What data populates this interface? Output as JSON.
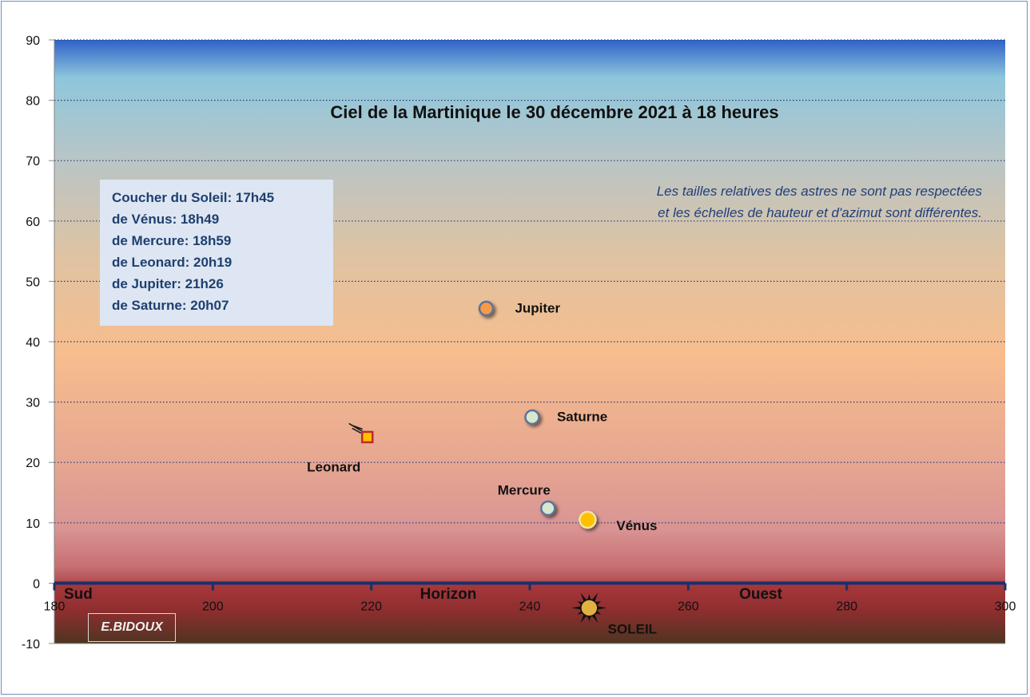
{
  "chart_data": {
    "type": "scatter",
    "title": "Ciel de la Martinique le 30 décembre 2021 à 18 heures",
    "note": [
      "Les tailles relatives des astres ne sont pas respectées",
      "et les échelles de hauteur et d'azimut sont différentes."
    ],
    "xlim": [
      180,
      300
    ],
    "ylim": [
      -10,
      90
    ],
    "x_ticks": [
      180,
      200,
      220,
      240,
      260,
      280,
      300
    ],
    "y_ticks": [
      -10,
      0,
      10,
      20,
      30,
      40,
      50,
      60,
      70,
      80,
      90
    ],
    "grid": "horizontal dotted",
    "horizon_labels": {
      "south": "Sud",
      "center": "Horizon",
      "west": "Ouest"
    },
    "points": [
      {
        "label": "Jupiter",
        "x": 234.5,
        "y": 45.5,
        "marker": "circle",
        "color": "#f59a4a"
      },
      {
        "label": "Saturne",
        "x": 240.3,
        "y": 27.5,
        "marker": "circle",
        "color": "#d6e8cf"
      },
      {
        "label": "Leonard",
        "x": 219.5,
        "y": 24.2,
        "marker": "comet",
        "color": "#ffc000"
      },
      {
        "label": "Mercure",
        "x": 242.3,
        "y": 12.4,
        "marker": "circle",
        "color": "#d6e8cf"
      },
      {
        "label": "Vénus",
        "x": 247.3,
        "y": 10.5,
        "marker": "circle",
        "color": "#ffc000"
      },
      {
        "label": "SOLEIL",
        "x": 247.5,
        "y": -4.1,
        "marker": "sun",
        "color": "#e0b040"
      }
    ]
  },
  "info_box": {
    "lines": [
      "Coucher du Soleil:  17h45",
      "de Vénus: 18h49",
      "de Mercure: 18h59",
      "de Leonard: 20h19",
      "de Jupiter: 21h26",
      "de Saturne: 20h07"
    ]
  },
  "credit": "E.BIDOUX"
}
